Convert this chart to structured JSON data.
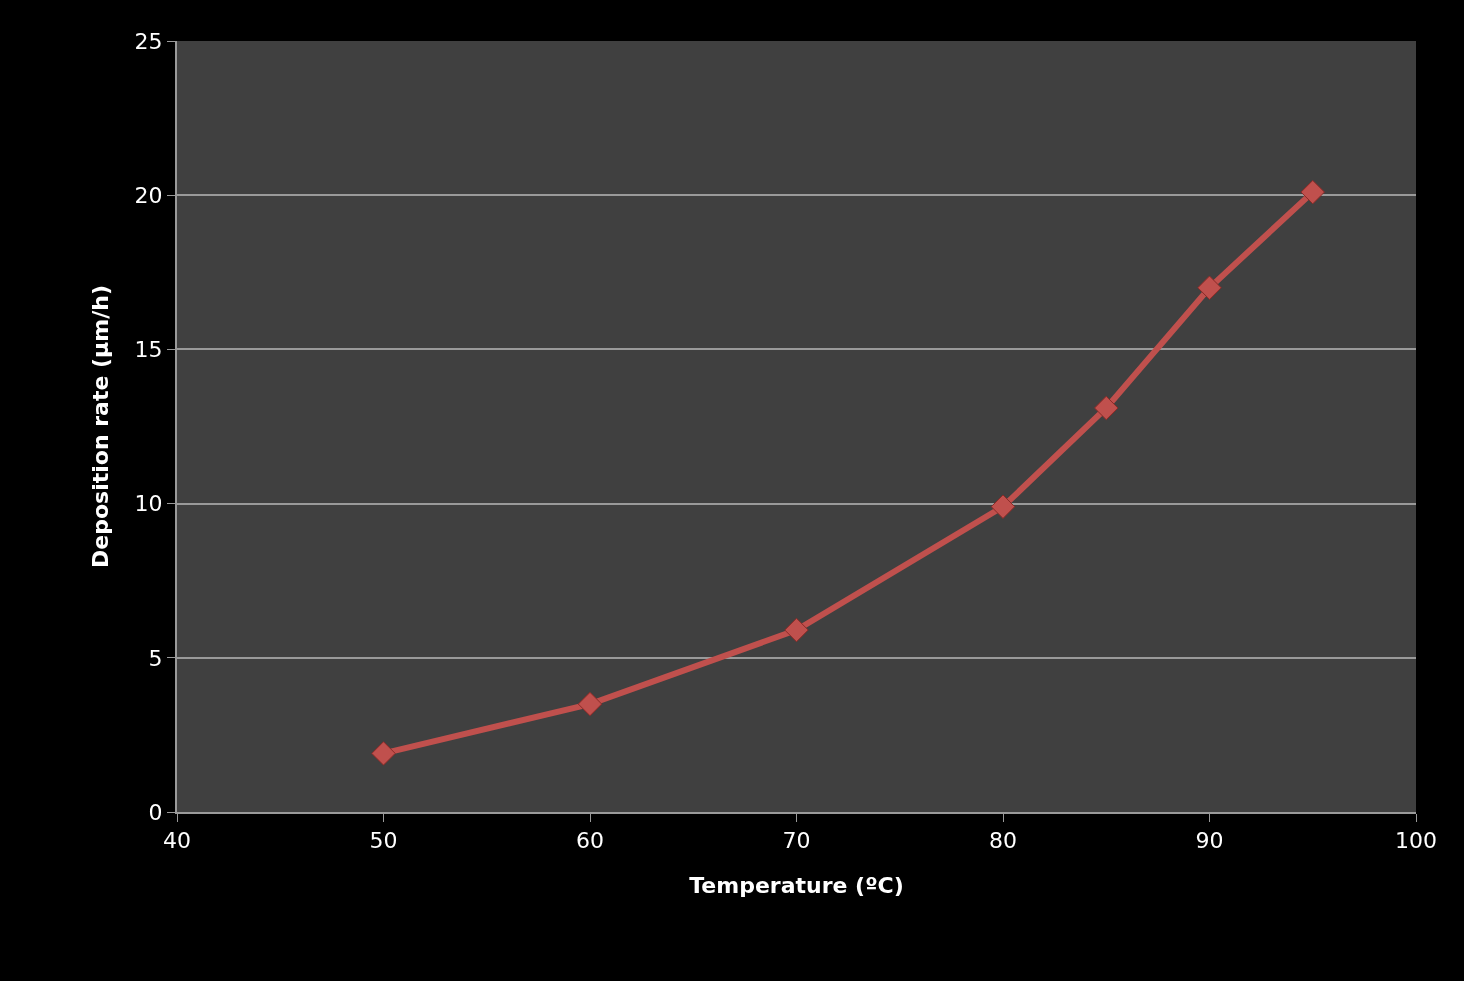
{
  "chart_data": {
    "type": "line",
    "xlabel": "Temperature (ºC)",
    "ylabel": "Deposition rate (µm/h)",
    "x": [
      50,
      60,
      70,
      80,
      85,
      90,
      95
    ],
    "series": [
      {
        "color": "#c0504d",
        "values": [
          1.9,
          3.5,
          5.9,
          9.9,
          13.1,
          17.0,
          20.1
        ]
      }
    ],
    "xlim": [
      40,
      100
    ],
    "xticks": [
      40,
      50,
      60,
      70,
      80,
      90,
      100
    ],
    "ylim": [
      0,
      25
    ],
    "yticks": [
      0,
      5,
      10,
      15,
      20,
      25
    ],
    "grid": "y",
    "marker": "diamond",
    "line_style": "solid"
  }
}
